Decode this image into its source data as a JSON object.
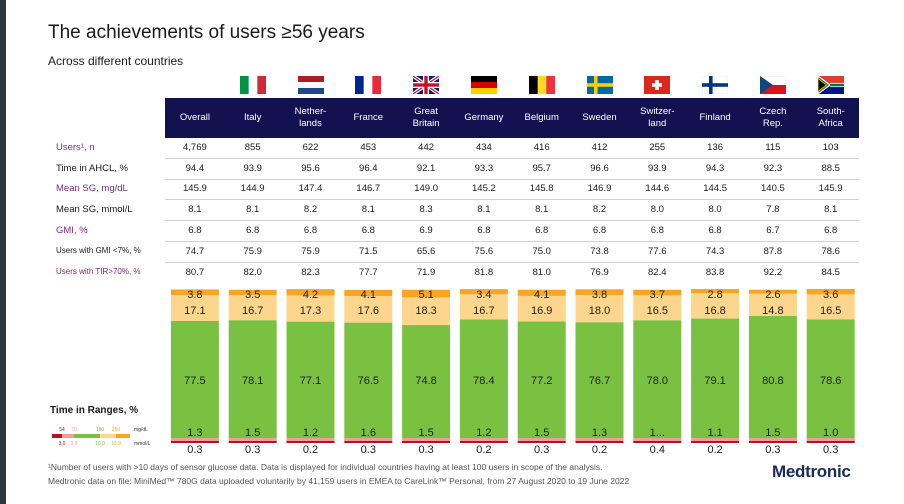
{
  "title": "The achievements of users ≥56 years",
  "subtitle": "Across different countries",
  "columns": [
    {
      "label": "Overall",
      "flag": ""
    },
    {
      "label": "Italy",
      "flag": "italy-flag"
    },
    {
      "label": "Nether-\nlands",
      "flag": "netherlands-flag"
    },
    {
      "label": "France",
      "flag": "france-flag"
    },
    {
      "label": "Great\nBritain",
      "flag": "uk-flag"
    },
    {
      "label": "Germany",
      "flag": "germany-flag"
    },
    {
      "label": "Belgium",
      "flag": "belgium-flag"
    },
    {
      "label": "Sweden",
      "flag": "sweden-flag"
    },
    {
      "label": "Switzer-\nland",
      "flag": "switzerland-flag"
    },
    {
      "label": "Finland",
      "flag": "finland-flag"
    },
    {
      "label": "Czech\nRep.",
      "flag": "czech-flag"
    },
    {
      "label": "South-\nAfrica",
      "flag": "south-africa-flag"
    }
  ],
  "rows": [
    {
      "label": "Users¹, n",
      "style": "purple",
      "values": [
        "4,769",
        "855",
        "622",
        "453",
        "442",
        "434",
        "416",
        "412",
        "255",
        "136",
        "115",
        "103"
      ]
    },
    {
      "label": "Time in AHCL, %",
      "style": "normal",
      "values": [
        "94.4",
        "93.9",
        "95.6",
        "96.4",
        "92.1",
        "93.3",
        "95.7",
        "96.6",
        "93.9",
        "94.3",
        "92.3",
        "88.5"
      ]
    },
    {
      "label": "Mean SG, mg/dL",
      "style": "purple",
      "values": [
        "145.9",
        "144.9",
        "147.4",
        "146.7",
        "149.0",
        "145.2",
        "145.8",
        "146.9",
        "144.6",
        "144.5",
        "140.5",
        "145.9"
      ]
    },
    {
      "label": "Mean SG, mmol/L",
      "style": "normal",
      "values": [
        "8.1",
        "8.1",
        "8.2",
        "8.1",
        "8.3",
        "8.1",
        "8.1",
        "8.2",
        "8.0",
        "8.0",
        "7.8",
        "8.1"
      ]
    },
    {
      "label": "GMI, %",
      "style": "purple",
      "values": [
        "6.8",
        "6.8",
        "6.8",
        "6.8",
        "6.9",
        "6.8",
        "6.8",
        "6.8",
        "6.8",
        "6.8",
        "6.7",
        "6.8"
      ]
    },
    {
      "label": "Users with GMI <7%, %",
      "style": "small",
      "values": [
        "74.7",
        "75.9",
        "75.9",
        "71.5",
        "65.6",
        "75.6",
        "75.0",
        "73.8",
        "77.6",
        "74.3",
        "87.8",
        "78.6"
      ]
    },
    {
      "label": "Users with TIR>70%, %",
      "style": "small-purple",
      "values": [
        "80.7",
        "82.0",
        "82.3",
        "77.7",
        "71.9",
        "81.8",
        "81.0",
        "76.9",
        "82.4",
        "83.8",
        "92.2",
        "84.5"
      ]
    }
  ],
  "chart_data": {
    "type": "bar",
    "stacked": true,
    "title": "Time in Ranges, %",
    "categories": [
      "Overall",
      "Italy",
      "Netherlands",
      "France",
      "Great Britain",
      "Germany",
      "Belgium",
      "Sweden",
      "Switzerland",
      "Finland",
      "Czech Rep.",
      "South-Africa"
    ],
    "series": [
      {
        "name": "<54 mg/dL",
        "color": "#b0151b",
        "values": [
          0.3,
          0.3,
          0.2,
          0.3,
          0.3,
          0.2,
          0.3,
          0.2,
          0.4,
          0.2,
          0.3,
          0.3
        ]
      },
      {
        "name": "54-70 mg/dL",
        "color": "#f29ba0",
        "values": [
          1.3,
          1.5,
          1.2,
          1.6,
          1.5,
          1.2,
          1.5,
          1.3,
          null,
          1.1,
          1.5,
          1.0
        ]
      },
      {
        "name": "70-180 mg/dL",
        "color": "#7ac142",
        "values": [
          77.5,
          78.1,
          77.1,
          76.5,
          74.8,
          78.4,
          77.2,
          76.7,
          78.0,
          79.1,
          80.8,
          78.6
        ]
      },
      {
        "name": "180-250 mg/dL",
        "color": "#fcd68c",
        "values": [
          17.1,
          16.7,
          17.3,
          17.6,
          18.3,
          16.7,
          16.9,
          18.0,
          16.5,
          16.8,
          14.8,
          16.5
        ]
      },
      {
        "name": ">250 mg/dL",
        "color": "#f6a623",
        "values": [
          3.8,
          3.5,
          4.2,
          4.1,
          5.1,
          3.4,
          4.1,
          3.8,
          3.7,
          2.8,
          2.6,
          3.6
        ]
      }
    ],
    "display_labels": {
      "low": [
        "1.3",
        "1.5",
        "1.2",
        "1.6",
        "1.5",
        "1.2",
        "1.5",
        "1.3",
        "1...",
        "1.1",
        "1.5",
        "1.0"
      ]
    }
  },
  "legend": {
    "mgdl_ticks": [
      "54",
      "70",
      "180",
      "250"
    ],
    "mmol_ticks": [
      "3.0",
      "3.9",
      "10.0",
      "13.9"
    ],
    "mgdl_unit": "mg/dL",
    "mmol_unit": "mmol/L"
  },
  "footnote1": "¹Number of users with >10 days of sensor glucose data. Data is displayed for individual countries having at least 100 users in scope of the analysis.",
  "footnote2": "Medtronic data on file: MiniMed™ 780G data uploaded voluntarily by 41,159 users in EMEA  to CareLink™ Personal, from 27 August 2020  to 19 June 2022",
  "logo_text": "Medtronic"
}
